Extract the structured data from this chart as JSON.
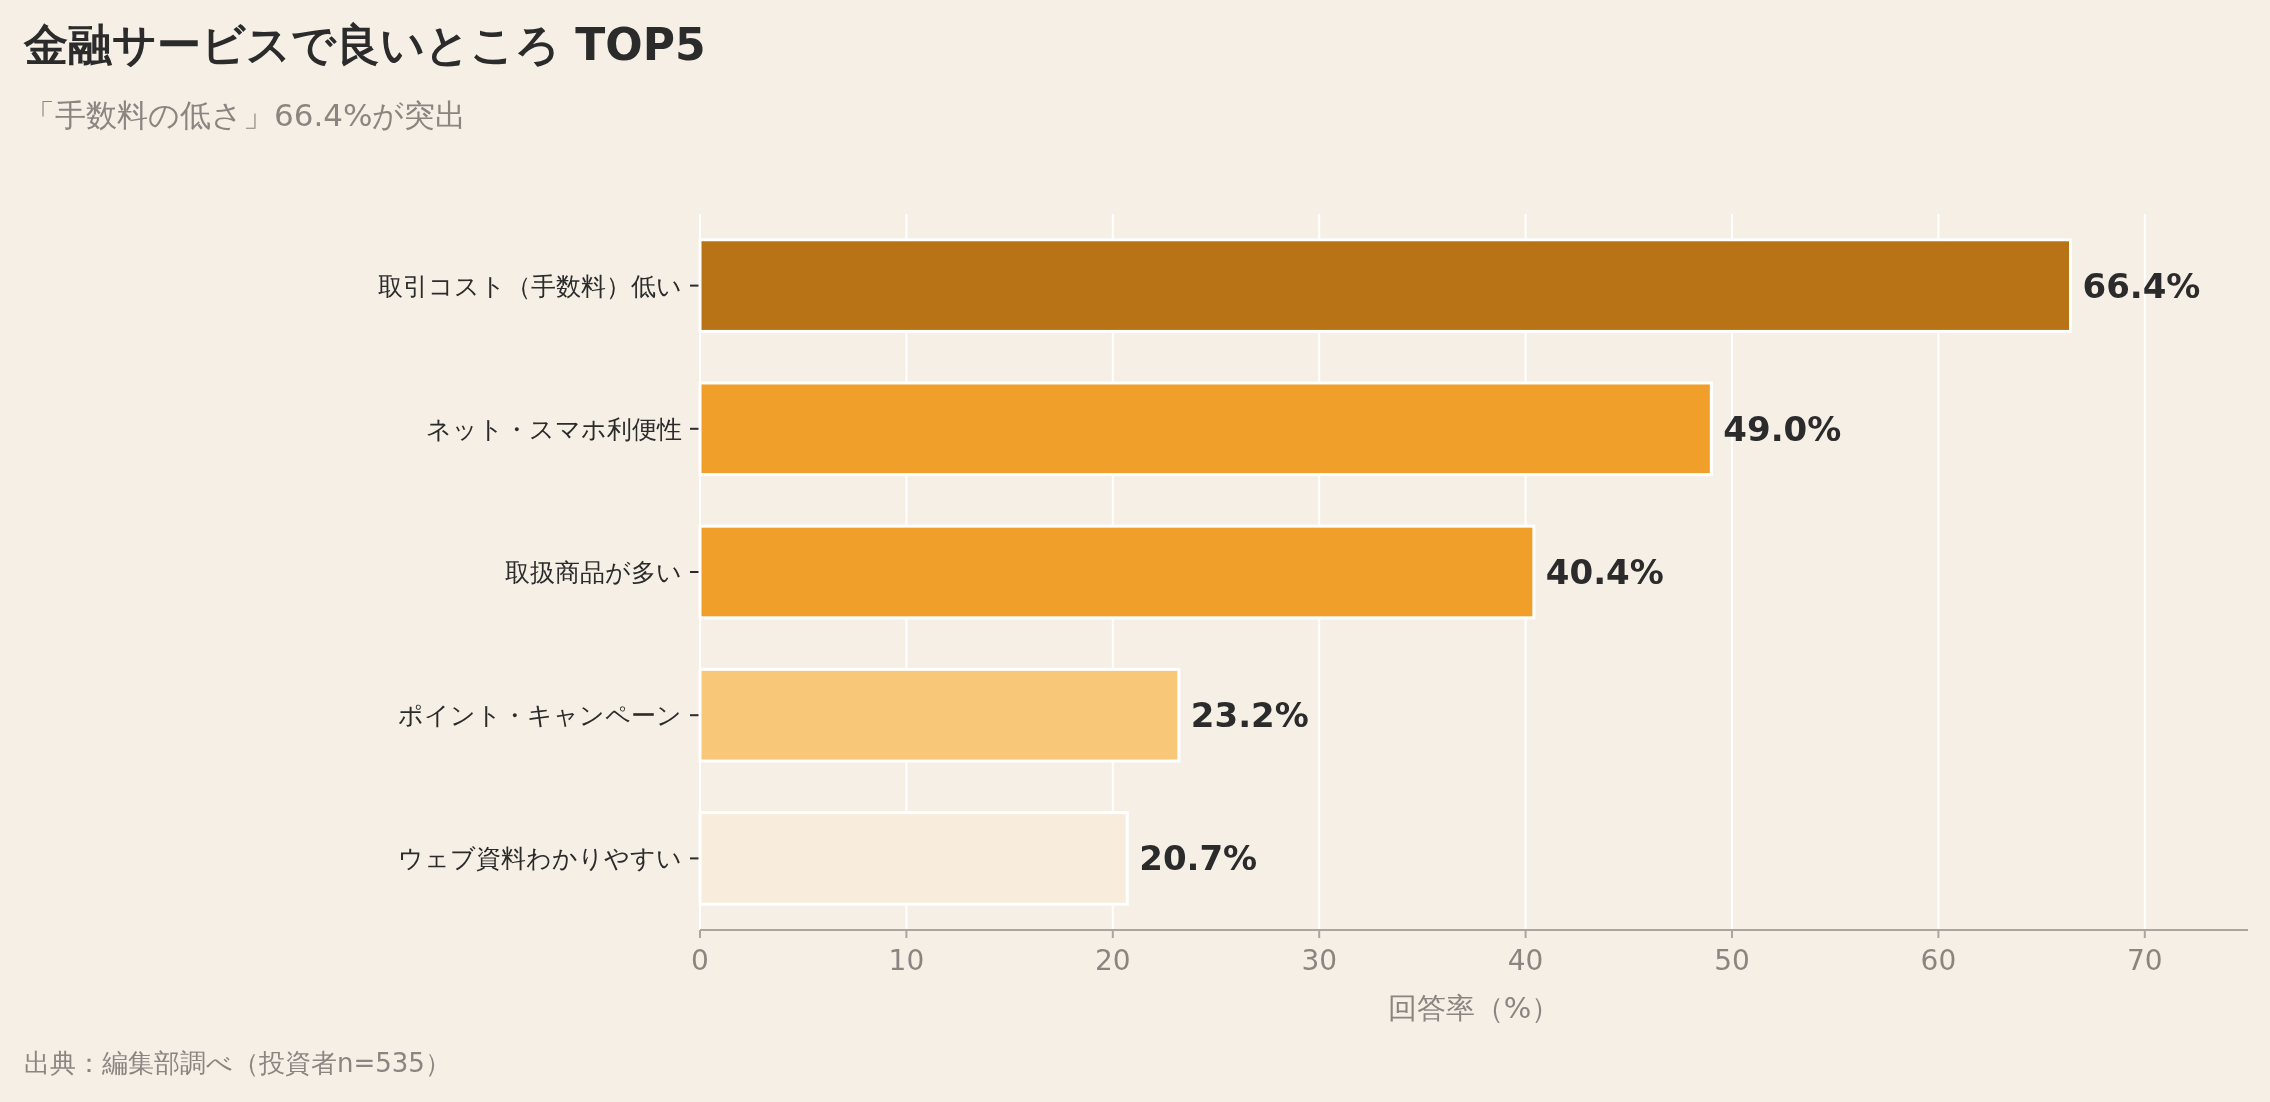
{
  "chart_data": {
    "type": "bar",
    "orientation": "horizontal",
    "title": "金融サービスで良いところ TOP5",
    "subtitle": "「手数料の低さ」66.4%が突出",
    "xlabel": "回答率（%）",
    "annotations": [
      "出典：編集部調べ（投資者n=535）"
    ],
    "categories": [
      "取引コスト（手数料）低い",
      "ネット・スマホ利便性",
      "取扱商品が多い",
      "ポイント・キャンペーン",
      "ウェブ資料わかりやすい"
    ],
    "values": [
      66.4,
      49.0,
      40.4,
      23.2,
      20.7
    ],
    "value_labels": [
      "66.4%",
      "49.0%",
      "40.4%",
      "23.2%",
      "20.7%"
    ],
    "colors": [
      "#b87316",
      "#f0a02a",
      "#f0a02a",
      "#f8c778",
      "#f8ecdc"
    ],
    "xlim": [
      0,
      75
    ],
    "xticks": [
      0,
      10,
      20,
      30,
      40,
      50,
      60,
      70
    ],
    "grid": "x"
  }
}
